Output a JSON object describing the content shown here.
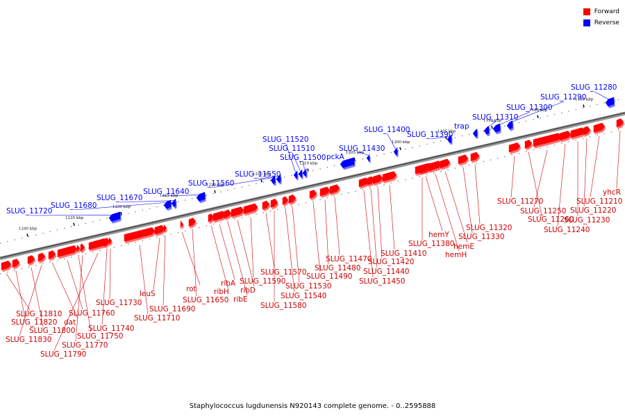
{
  "caption": "Staphylococcus lugdunensis N920143 complete genome. - 0..2595888",
  "legend": [
    {
      "label": "Forward",
      "color": "#ff0000"
    },
    {
      "label": "Reverse",
      "color": "#0000ff"
    }
  ],
  "ticks": [
    "1240 kbp",
    "1235 kbp",
    "1230 kbp",
    "1225 kbp",
    "1220 kbp",
    "1215 kbp",
    "1210 kbp",
    "1205 kbp",
    "1200 kbp",
    "1195 kbp",
    "1190 kbp",
    "1185 kbp",
    "1180 kbp"
  ],
  "reverse_genes": [
    {
      "name": "SLUG_11720"
    },
    {
      "name": "SLUG_11680"
    },
    {
      "name": "SLUG_11670"
    },
    {
      "name": "SLUG_11640"
    },
    {
      "name": "SLUG_11560"
    },
    {
      "name": "SLUG_11550"
    },
    {
      "name": "SLUG_11520"
    },
    {
      "name": "SLUG_11510"
    },
    {
      "name": "SLUG_11500"
    },
    {
      "name": "pckA"
    },
    {
      "name": "SLUG_11430"
    },
    {
      "name": "SLUG_11400"
    },
    {
      "name": "SLUG_11390"
    },
    {
      "name": "trap"
    },
    {
      "name": "SLUG_11310"
    },
    {
      "name": "SLUG_11300"
    },
    {
      "name": "SLUG_11290"
    },
    {
      "name": "SLUG_11280"
    }
  ],
  "forward_genes": [
    {
      "name": "SLUG_11810"
    },
    {
      "name": "SLUG_11820"
    },
    {
      "name": "SLUG_11800"
    },
    {
      "name": "SLUG_11830"
    },
    {
      "name": "dat"
    },
    {
      "name": "SLUG_11760"
    },
    {
      "name": "SLUG_11770"
    },
    {
      "name": "SLUG_11790"
    },
    {
      "name": "SLUG_11750"
    },
    {
      "name": "SLUG_11740"
    },
    {
      "name": "SLUG_11730"
    },
    {
      "name": "SLUG_11710"
    },
    {
      "name": "leuS"
    },
    {
      "name": "SLUG_11690"
    },
    {
      "name": "rot"
    },
    {
      "name": "SLUG_11650"
    },
    {
      "name": "ribH"
    },
    {
      "name": "ribA"
    },
    {
      "name": "ribE"
    },
    {
      "name": "ribD"
    },
    {
      "name": "SLUG_11590"
    },
    {
      "name": "SLUG_11570"
    },
    {
      "name": "SLUG_11580"
    },
    {
      "name": "SLUG_11540"
    },
    {
      "name": "SLUG_11530"
    },
    {
      "name": "SLUG_11490"
    },
    {
      "name": "SLUG_11480"
    },
    {
      "name": "SLUG_11470"
    },
    {
      "name": "SLUG_11450"
    },
    {
      "name": "SLUG_11440"
    },
    {
      "name": "SLUG_11420"
    },
    {
      "name": "SLUG_11410"
    },
    {
      "name": "SLUG_11380"
    },
    {
      "name": "hemY"
    },
    {
      "name": "hemH"
    },
    {
      "name": "hemE"
    },
    {
      "name": "SLUG_11330"
    },
    {
      "name": "SLUG_11320"
    },
    {
      "name": "SLUG_11270"
    },
    {
      "name": "SLUG_11260"
    },
    {
      "name": "SLUG_11250"
    },
    {
      "name": "SLUG_11240"
    },
    {
      "name": "SLUG_11230"
    },
    {
      "name": "SLUG_11220"
    },
    {
      "name": "SLUG_11210"
    },
    {
      "name": "yhcR"
    }
  ]
}
